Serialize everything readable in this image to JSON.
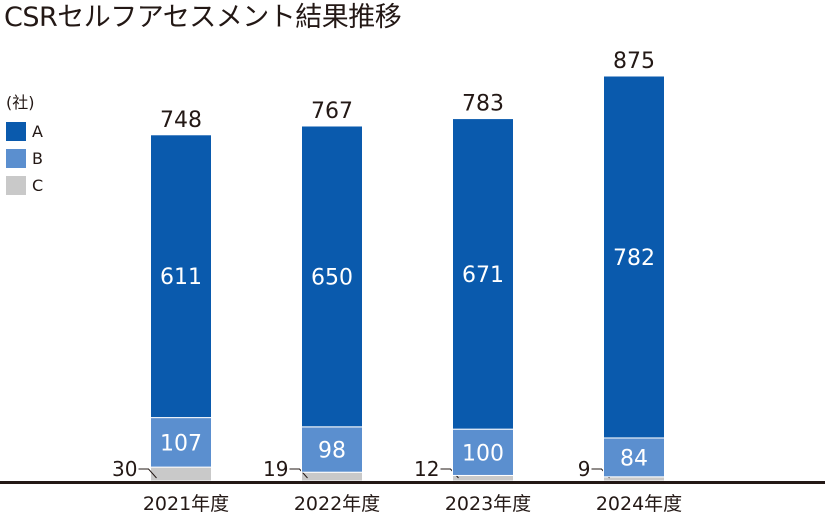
{
  "chart_data": {
    "type": "bar",
    "stacked": true,
    "title": "CSRセルフアセスメント結果推移",
    "unit": "(社)",
    "categories": [
      "2021年度",
      "2022年度",
      "2023年度",
      "2024年度"
    ],
    "series": [
      {
        "name": "C",
        "values": [
          30,
          19,
          12,
          9
        ],
        "color": "#c9c9c9"
      },
      {
        "name": "B",
        "values": [
          107,
          98,
          100,
          84
        ],
        "color": "#5b8fcf"
      },
      {
        "name": "A",
        "values": [
          611,
          650,
          671,
          782
        ],
        "color": "#0a5aad"
      }
    ],
    "totals": [
      748,
      767,
      783,
      875
    ],
    "ylim": [
      0,
      875
    ],
    "legend": "left",
    "grid": false
  }
}
